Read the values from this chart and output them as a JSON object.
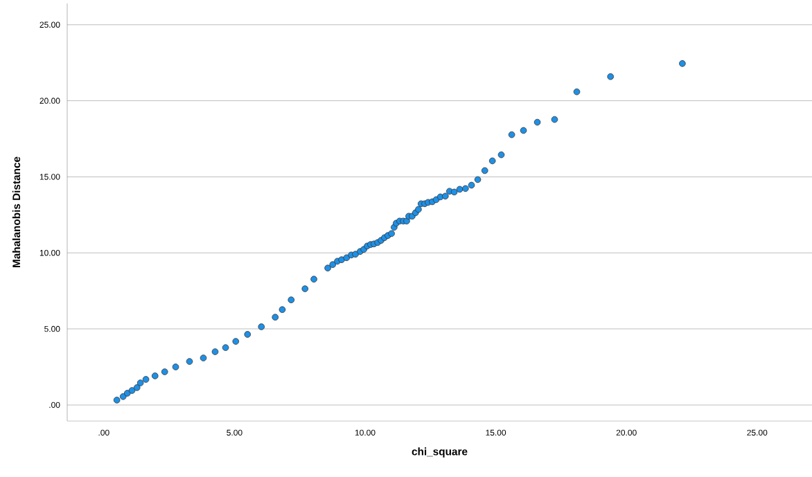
{
  "chart_data": {
    "type": "scatter",
    "xlabel": "chi_square",
    "ylabel": "Mahalanobis Distance",
    "x": [
      0.5,
      0.74,
      0.9,
      1.08,
      1.27,
      1.4,
      1.61,
      1.96,
      2.33,
      2.75,
      3.28,
      3.81,
      4.26,
      4.66,
      5.05,
      5.5,
      6.03,
      6.56,
      6.83,
      7.17,
      7.7,
      8.04,
      8.57,
      8.76,
      8.94,
      9.1,
      9.29,
      9.47,
      9.63,
      9.81,
      9.95,
      10.08,
      10.21,
      10.34,
      10.48,
      10.61,
      10.74,
      10.87,
      11.01,
      11.11,
      11.19,
      11.32,
      11.46,
      11.59,
      11.67,
      11.8,
      11.93,
      12.04,
      12.14,
      12.28,
      12.41,
      12.57,
      12.72,
      12.88,
      13.07,
      13.23,
      13.41,
      13.62,
      13.84,
      14.07,
      14.31,
      14.58,
      14.87,
      15.21,
      15.61,
      16.06,
      16.59,
      17.25,
      18.1,
      19.39,
      22.14
    ],
    "values": [
      0.32,
      0.55,
      0.77,
      0.95,
      1.14,
      1.45,
      1.68,
      1.91,
      2.18,
      2.5,
      2.86,
      3.09,
      3.5,
      3.77,
      4.18,
      4.64,
      5.14,
      5.77,
      6.27,
      6.91,
      7.64,
      8.27,
      9.0,
      9.23,
      9.45,
      9.55,
      9.68,
      9.86,
      9.91,
      10.09,
      10.23,
      10.45,
      10.55,
      10.59,
      10.68,
      10.82,
      11.0,
      11.14,
      11.27,
      11.68,
      11.95,
      12.09,
      12.09,
      12.09,
      12.41,
      12.41,
      12.64,
      12.86,
      13.23,
      13.23,
      13.32,
      13.36,
      13.5,
      13.68,
      13.73,
      14.05,
      14.0,
      14.18,
      14.23,
      14.45,
      14.82,
      15.41,
      16.05,
      16.45,
      17.77,
      18.05,
      18.59,
      18.77,
      20.59,
      21.59,
      22.45
    ],
    "color": "#1e90e6",
    "marker": "circle",
    "grid": "y",
    "xlim": [
      -1.4,
      27.1
    ],
    "ylim": [
      -1.05,
      26.4
    ],
    "xticks": [
      {
        "value": 0,
        "label": ".00"
      },
      {
        "value": 5,
        "label": "5.00"
      },
      {
        "value": 10,
        "label": "10.00"
      },
      {
        "value": 15,
        "label": "15.00"
      },
      {
        "value": 20,
        "label": "20.00"
      },
      {
        "value": 25,
        "label": "25.00"
      }
    ],
    "yticks": [
      {
        "value": 0,
        "label": ".00"
      },
      {
        "value": 5,
        "label": "5.00"
      },
      {
        "value": 10,
        "label": "10.00"
      },
      {
        "value": 15,
        "label": "15.00"
      },
      {
        "value": 20,
        "label": "20.00"
      },
      {
        "value": 25,
        "label": "25.00"
      }
    ]
  }
}
